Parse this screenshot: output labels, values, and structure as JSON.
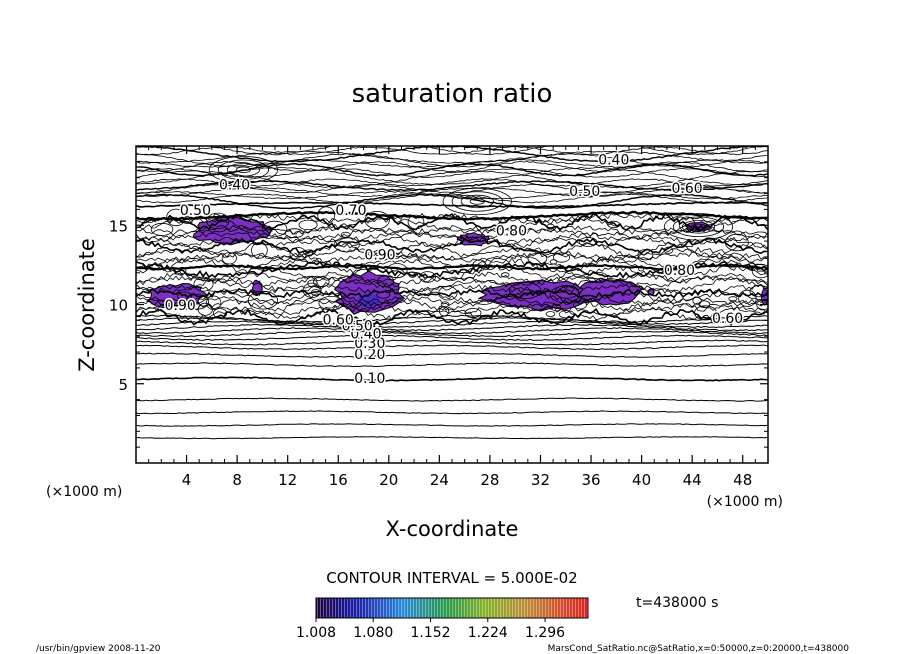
{
  "chart_data": {
    "type": "contour",
    "title": "saturation ratio",
    "xlabel": "X-coordinate",
    "ylabel": "Z-coordinate",
    "x_unit": "(×1000 m)",
    "y_unit": "(×1000 m)",
    "xlim": [
      0,
      50
    ],
    "ylim": [
      0,
      20
    ],
    "x_ticks": [
      "4",
      "8",
      "12",
      "16",
      "20",
      "24",
      "28",
      "32",
      "36",
      "40",
      "44",
      "48"
    ],
    "y_ticks": [
      "5",
      "10",
      "15"
    ],
    "contour_interval_text": "CONTOUR INTERVAL = 5.000E-02",
    "contour_labels": [
      {
        "text": "0.10",
        "x": 18.5,
        "y": 5.3
      },
      {
        "text": "0.20",
        "x": 18.5,
        "y": 6.8
      },
      {
        "text": "0.30",
        "x": 18.5,
        "y": 7.5
      },
      {
        "text": "0.40",
        "x": 18.2,
        "y": 8.1
      },
      {
        "text": "0.50",
        "x": 17.5,
        "y": 8.6
      },
      {
        "text": "0.60",
        "x": 16.0,
        "y": 9.0
      },
      {
        "text": "0.90",
        "x": 3.5,
        "y": 9.9
      },
      {
        "text": "0.60",
        "x": 46.8,
        "y": 9.1
      },
      {
        "text": "0.40",
        "x": 7.8,
        "y": 17.5
      },
      {
        "text": "0.50",
        "x": 4.7,
        "y": 15.9
      },
      {
        "text": "0.70",
        "x": 17.0,
        "y": 15.9
      },
      {
        "text": "0.40",
        "x": 37.8,
        "y": 19.1
      },
      {
        "text": "0.50",
        "x": 35.5,
        "y": 17.1
      },
      {
        "text": "0.60",
        "x": 43.6,
        "y": 17.3
      },
      {
        "text": "0.80",
        "x": 29.7,
        "y": 14.6
      },
      {
        "text": "0.90",
        "x": 19.3,
        "y": 13.1
      },
      {
        "text": "0.80",
        "x": 43.0,
        "y": 12.1
      }
    ],
    "shaded_regions": [
      {
        "name": "supersaturated",
        "x": [
          4.5,
          10.5
        ],
        "y": [
          13.8,
          15.5
        ]
      },
      {
        "name": "supersaturated",
        "x": [
          0.8,
          5.5
        ],
        "y": [
          9.8,
          11.3
        ]
      },
      {
        "name": "supersaturated",
        "x": [
          15.8,
          21.0
        ],
        "y": [
          9.4,
          12.0
        ]
      },
      {
        "name": "supersaturated",
        "x": [
          27.5,
          36.5
        ],
        "y": [
          9.7,
          11.5
        ]
      },
      {
        "name": "supersaturated",
        "x": [
          35.0,
          40.0
        ],
        "y": [
          10.0,
          11.6
        ]
      },
      {
        "name": "supersaturated",
        "x": [
          25.5,
          28.0
        ],
        "y": [
          13.7,
          14.5
        ]
      },
      {
        "name": "supersaturated",
        "x": [
          43.5,
          45.5
        ],
        "y": [
          14.6,
          15.2
        ]
      },
      {
        "name": "supersaturated",
        "x": [
          9.2,
          10.0
        ],
        "y": [
          10.6,
          11.5
        ]
      },
      {
        "name": "supersaturated",
        "x": [
          40.5,
          41.0
        ],
        "y": [
          10.6,
          11.0
        ]
      },
      {
        "name": "supersaturated",
        "x": [
          49.5,
          50.0
        ],
        "y": [
          10.0,
          11.0
        ]
      }
    ],
    "colorbar": {
      "ticks": [
        "1.008",
        "1.080",
        "1.152",
        "1.224",
        "1.296"
      ],
      "range": [
        1.008,
        1.35
      ]
    },
    "time_text": "t=438000 s",
    "grid": false,
    "legend": "bottom-center colorbar"
  },
  "footer": {
    "left": "/usr/bin/gpview   2008-11-20",
    "right": "MarsCond_SatRatio.nc@SatRatio,x=0:50000,z=0:20000,t=438000"
  },
  "colors": {
    "fill_low": "#4b2cc8",
    "fill_main": "#7b2fc3",
    "fill_high": "#9d35c9",
    "line": "#000000"
  }
}
